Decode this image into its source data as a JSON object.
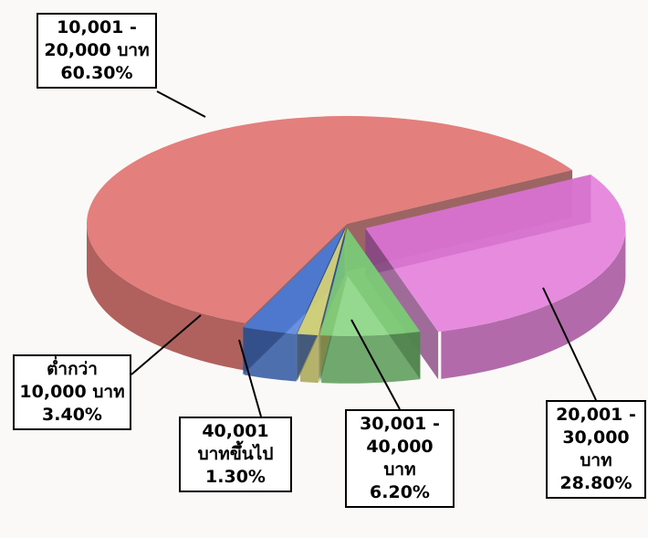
{
  "chart_data": {
    "type": "pie",
    "categories": [
      "10,001 - 20,000 บาท",
      "20,001 - 30,000 บาท",
      "30,001 - 40,000 บาท",
      "40,001 บาทขึ้นไป",
      "ต่ำกว่า 10,000 บาท"
    ],
    "values": [
      60.3,
      28.8,
      6.2,
      1.3,
      3.4
    ],
    "value_labels": [
      "60.30%",
      "28.80%",
      "6.20%",
      "1.30%",
      "3.40%"
    ],
    "colors": [
      "#de6a66",
      "#e278d8",
      "#82d27c",
      "#e6e27a",
      "#4f7fdc"
    ]
  }
}
